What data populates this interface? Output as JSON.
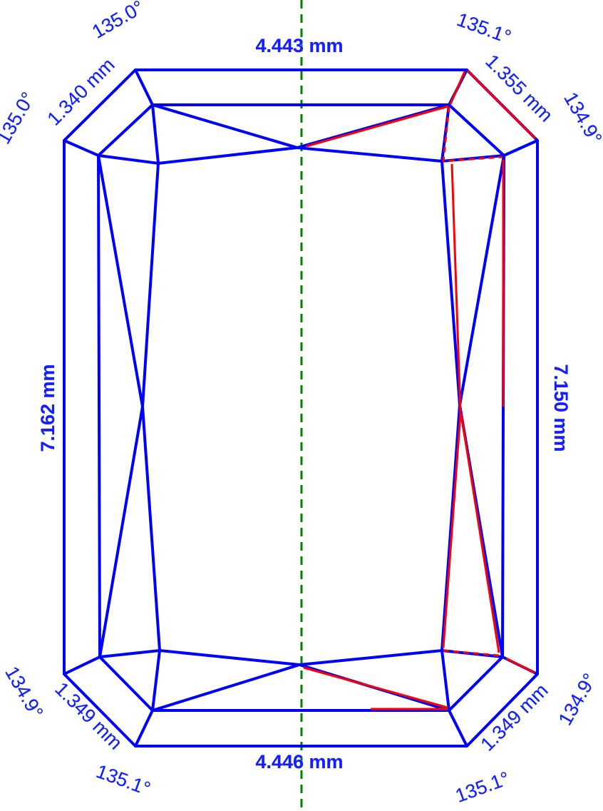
{
  "colors": {
    "outline": "#0000ff",
    "highlight": "#ff0000",
    "axis": "#008000",
    "label": "#1a1aff"
  },
  "labels": {
    "top_width": "4.443 mm",
    "bottom_width": "4.446 mm",
    "left_length": "7.162 mm",
    "right_length": "7.150 mm",
    "corner_top_left": "1.340 mm",
    "corner_top_right": "1.355 mm",
    "corner_bottom_left": "1.349 mm",
    "corner_bottom_right": "1.349 mm",
    "angle_top_left_upper": "135.0°",
    "angle_top_left_lower": "135.0°",
    "angle_top_right_upper": "135.1°",
    "angle_top_right_lower": "134.9°",
    "angle_bottom_left_upper": "134.9°",
    "angle_bottom_left_lower": "135.1°",
    "angle_bottom_right_upper": "134.9°",
    "angle_bottom_right_lower": "135.1°"
  }
}
